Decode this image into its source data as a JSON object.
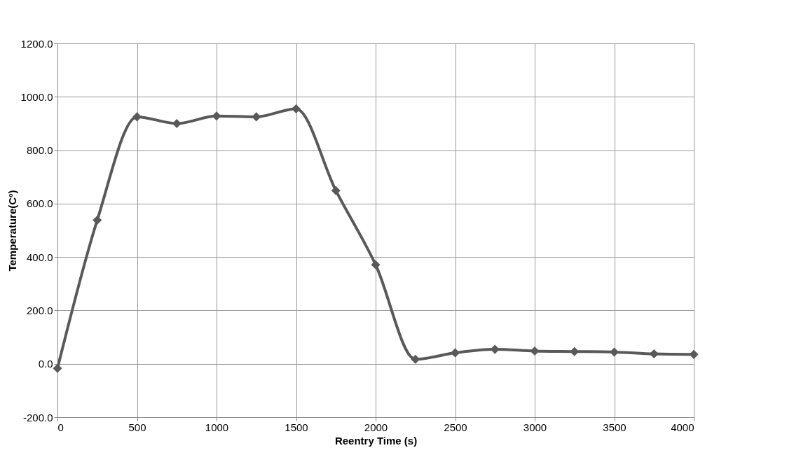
{
  "chart_data": {
    "type": "line",
    "xlabel": "Reentry Time (s)",
    "ylabel": "Temperature(Cº)",
    "x": [
      0,
      250,
      500,
      750,
      1000,
      1250,
      1500,
      1750,
      2000,
      2250,
      2500,
      2750,
      3000,
      3250,
      3500,
      3750,
      4000
    ],
    "series": [
      {
        "color": "#595959",
        "values": [
          -17,
          538,
          925,
          900,
          928,
          925,
          955,
          649,
          371,
          17,
          41,
          54,
          48,
          46,
          44,
          37,
          35
        ]
      }
    ],
    "xlim": [
      0,
      4000
    ],
    "xticks": [
      0,
      500,
      1000,
      1500,
      2000,
      2500,
      3000,
      3500,
      4000
    ],
    "ylim": [
      -200,
      1200
    ],
    "yticks": [
      {
        "value": -200,
        "label": "-200.0"
      },
      {
        "value": 0,
        "label": "0.0"
      },
      {
        "value": 200,
        "label": "200.0"
      },
      {
        "value": 400,
        "label": "400.0"
      },
      {
        "value": 600,
        "label": "600.0"
      },
      {
        "value": 800,
        "label": "800.0"
      },
      {
        "value": 1000,
        "label": "1000.0"
      },
      {
        "value": 1200,
        "label": "1200.0"
      }
    ],
    "grid": true,
    "marker": "diamond",
    "line_style": "solid",
    "legend": false
  }
}
